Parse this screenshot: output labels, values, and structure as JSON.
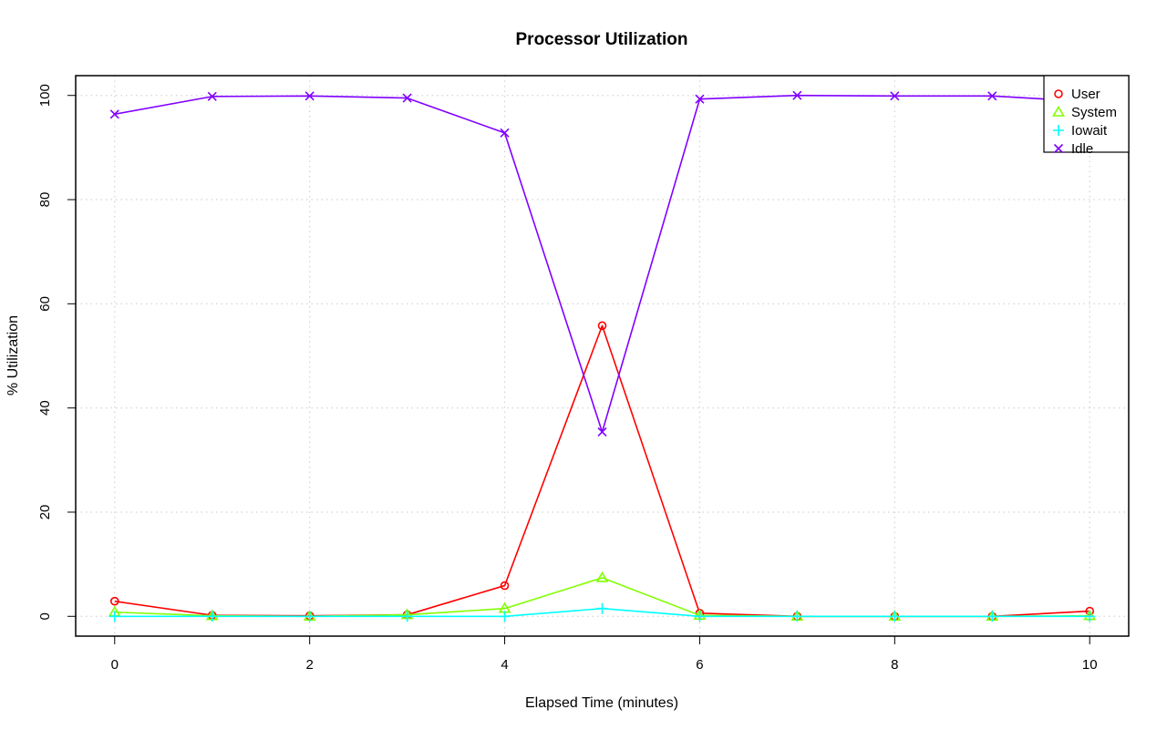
{
  "chart_data": {
    "type": "line",
    "title": "Processor Utilization",
    "xlabel": "Elapsed Time (minutes)",
    "ylabel": "% Utilization",
    "xlim": [
      -0.4,
      10.4
    ],
    "ylim": [
      -3.8,
      103.8
    ],
    "x_ticks": [
      0,
      2,
      4,
      6,
      8,
      10
    ],
    "y_ticks": [
      0,
      20,
      40,
      60,
      80,
      100
    ],
    "grid": true,
    "legend_position": "top-right",
    "x": [
      0,
      1,
      2,
      3,
      4,
      5,
      6,
      7,
      8,
      9,
      10
    ],
    "series": [
      {
        "name": "User",
        "color": "#ff0000",
        "marker": "circle",
        "values": [
          2.9,
          0.2,
          0.1,
          0.3,
          5.9,
          55.8,
          0.6,
          0.0,
          0.0,
          0.0,
          1.0
        ]
      },
      {
        "name": "System",
        "color": "#80ff00",
        "marker": "triangle",
        "values": [
          0.8,
          0.1,
          0.0,
          0.3,
          1.5,
          7.4,
          0.2,
          0.0,
          0.0,
          0.0,
          0.1
        ]
      },
      {
        "name": "Iowait",
        "color": "#00ffff",
        "marker": "plus",
        "values": [
          0.0,
          0.0,
          0.0,
          0.0,
          0.0,
          1.5,
          0.0,
          0.0,
          0.0,
          0.0,
          0.0
        ]
      },
      {
        "name": "Idle",
        "color": "#8000ff",
        "marker": "x",
        "values": [
          96.4,
          99.8,
          99.9,
          99.5,
          92.8,
          35.4,
          99.3,
          100.0,
          99.9,
          99.9,
          98.8
        ]
      }
    ]
  }
}
